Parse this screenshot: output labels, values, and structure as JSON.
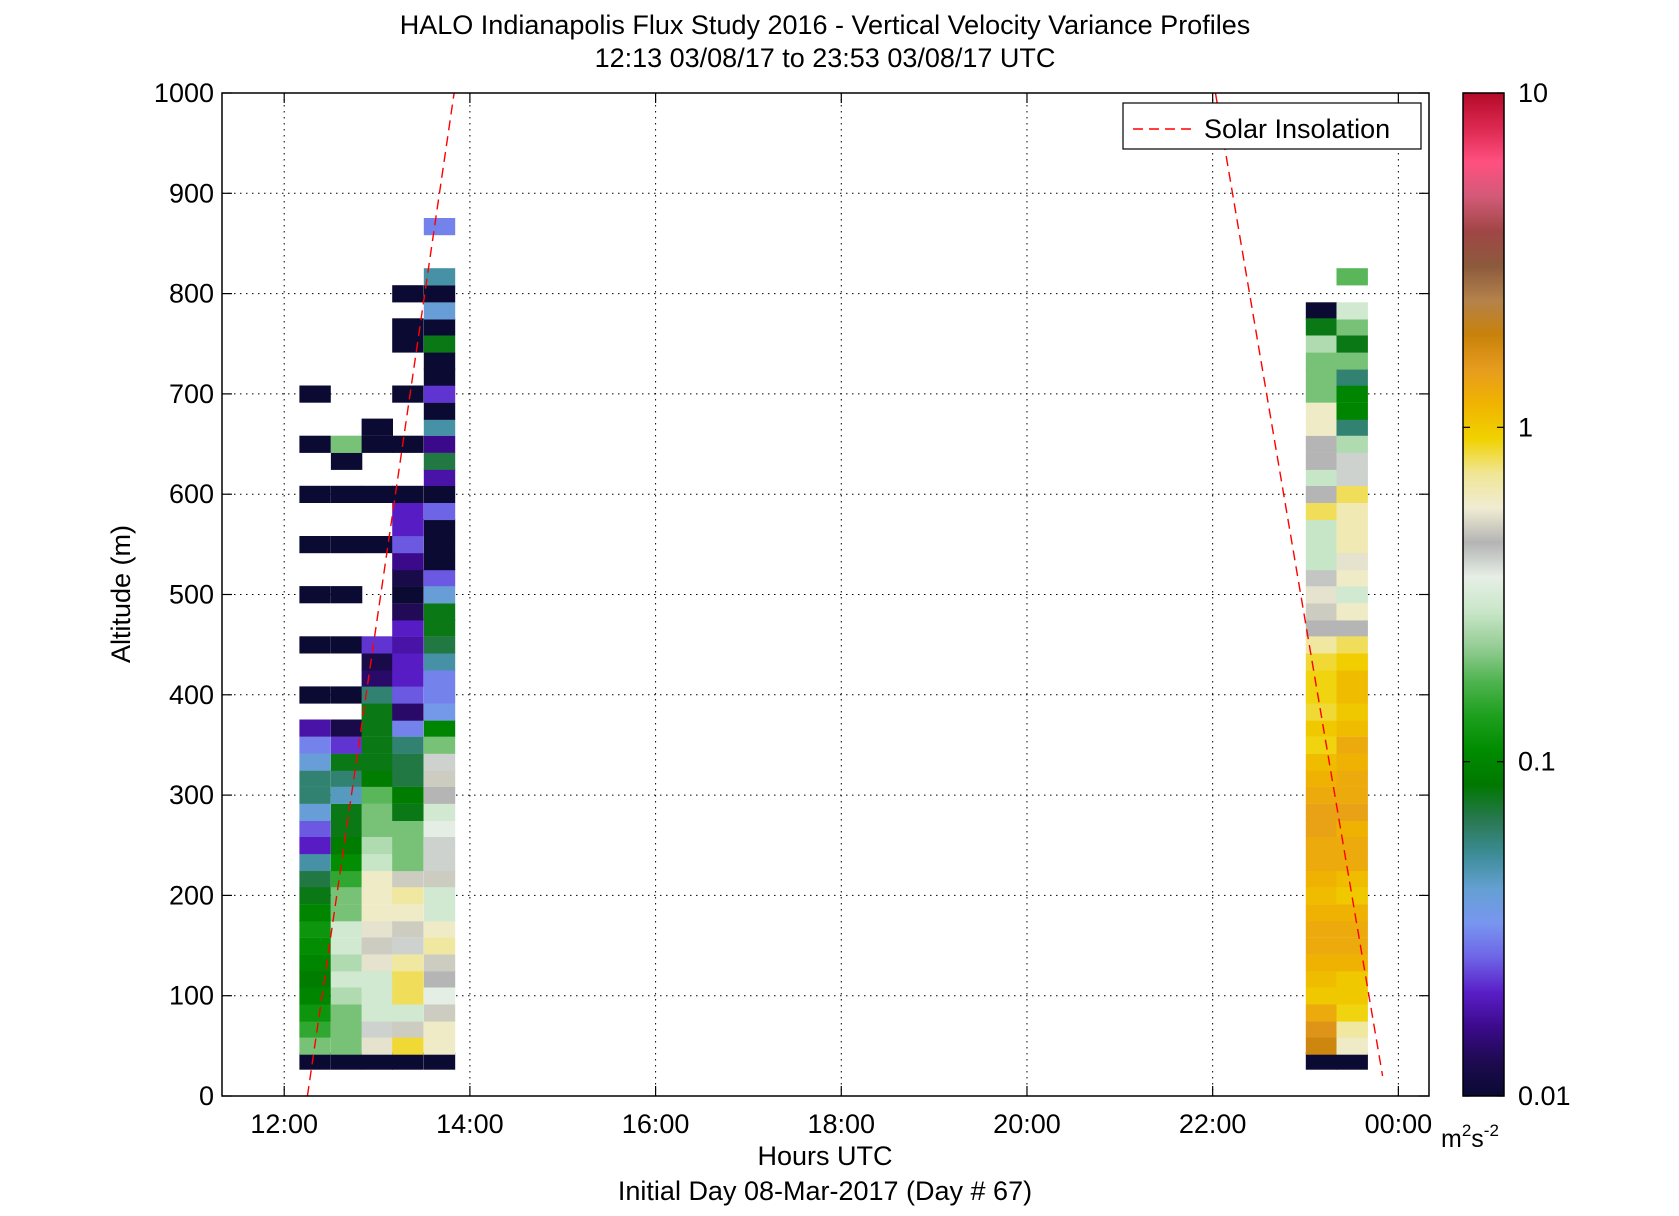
{
  "chart_data": {
    "type": "heatmap",
    "title": "HALO Indianapolis Flux Study 2016 - Vertical Velocity Variance Profiles",
    "subtitle": "12:13 03/08/17 to 23:53 03/08/17  UTC",
    "xlabel": "Hours UTC",
    "xlabel2": "Initial Day 08-Mar-2017 (Day # 67)",
    "ylabel": "Altitude (m)",
    "xlim": [
      11.33,
      24.33
    ],
    "ylim": [
      0,
      1000
    ],
    "x_ticks": [
      12,
      14,
      16,
      18,
      20,
      22,
      24
    ],
    "x_tick_labels": [
      "12:00",
      "14:00",
      "16:00",
      "18:00",
      "20:00",
      "22:00",
      "00:00"
    ],
    "y_ticks": [
      0,
      100,
      200,
      300,
      400,
      500,
      600,
      700,
      800,
      900,
      1000
    ],
    "y_tick_labels": [
      "0",
      "100",
      "200",
      "300",
      "400",
      "500",
      "600",
      "700",
      "800",
      "900",
      "1000"
    ],
    "grid": true,
    "legend_position": "top-right",
    "legend": [
      {
        "label": "Solar Insolation",
        "color": "#ff0000",
        "style": "dashed"
      }
    ],
    "colorbar": {
      "scale": "log",
      "range": [
        0.01,
        10
      ],
      "ticks": [
        0.01,
        0.1,
        1,
        10
      ],
      "tick_labels": [
        "0.01",
        "0.1",
        "1",
        "10"
      ],
      "unit_base": "m",
      "unit_exp1": "2",
      "unit_mid": "s",
      "unit_exp2": "-2",
      "colors": [
        "#0a0a32",
        "#1e0a50",
        "#3c0a8c",
        "#5a1ec8",
        "#6e64e6",
        "#7896f0",
        "#64a0d2",
        "#3c8c96",
        "#287850",
        "#007800",
        "#008c00",
        "#1ea01e",
        "#50b450",
        "#96cd96",
        "#c8e6c8",
        "#e6efe6",
        "#b4b4b4",
        "#f0ecd2",
        "#f0e696",
        "#f0d200",
        "#f0b400",
        "#e69c1e",
        "#c8820a",
        "#b4824b",
        "#8c5a3c",
        "#a04646",
        "#d25a78",
        "#ff5080",
        "#dc2850",
        "#b40a28"
      ]
    },
    "series": [
      {
        "name": "Solar Insolation",
        "segments": [
          [
            [
              12.25,
              0
            ],
            [
              13.83,
              1000
            ]
          ],
          [
            [
              22.03,
              1000
            ],
            [
              23.83,
              20
            ]
          ]
        ]
      }
    ],
    "profiles": [
      {
        "time": 12.33,
        "cells": [
          [
            35,
            0.01
          ],
          [
            50,
            0.2
          ],
          [
            67,
            0.15
          ],
          [
            83,
            0.12
          ],
          [
            100,
            0.1
          ],
          [
            117,
            0.09
          ],
          [
            133,
            0.1
          ],
          [
            150,
            0.11
          ],
          [
            167,
            0.12
          ],
          [
            183,
            0.1
          ],
          [
            200,
            0.08
          ],
          [
            217,
            0.07
          ],
          [
            233,
            0.05
          ],
          [
            250,
            0.02
          ],
          [
            267,
            0.025
          ],
          [
            283,
            0.04
          ],
          [
            300,
            0.06
          ],
          [
            317,
            0.06
          ],
          [
            333,
            0.04
          ],
          [
            350,
            0.03
          ],
          [
            367,
            0.018
          ],
          [
            400,
            0.01
          ],
          [
            450,
            0.01
          ],
          [
            500,
            0.01
          ],
          [
            550,
            0.01
          ],
          [
            600,
            0.01
          ],
          [
            650,
            0.01
          ],
          [
            700,
            0.01
          ]
        ]
      },
      {
        "time": 12.67,
        "cells": [
          [
            35,
            0.01
          ],
          [
            50,
            0.2
          ],
          [
            67,
            0.2
          ],
          [
            83,
            0.2
          ],
          [
            100,
            0.25
          ],
          [
            117,
            0.3
          ],
          [
            133,
            0.25
          ],
          [
            150,
            0.3
          ],
          [
            167,
            0.3
          ],
          [
            183,
            0.2
          ],
          [
            200,
            0.2
          ],
          [
            217,
            0.15
          ],
          [
            233,
            0.11
          ],
          [
            250,
            0.09
          ],
          [
            267,
            0.08
          ],
          [
            283,
            0.08
          ],
          [
            300,
            0.045
          ],
          [
            317,
            0.06
          ],
          [
            333,
            0.08
          ],
          [
            350,
            0.022
          ],
          [
            367,
            0.012
          ],
          [
            400,
            0.01
          ],
          [
            450,
            0.01
          ],
          [
            500,
            0.01
          ],
          [
            550,
            0.01
          ],
          [
            600,
            0.01
          ],
          [
            633,
            0.01
          ],
          [
            650,
            0.2
          ]
        ]
      },
      {
        "time": 13.0,
        "cells": [
          [
            35,
            0.01
          ],
          [
            50,
            0.55
          ],
          [
            67,
            0.4
          ],
          [
            83,
            0.3
          ],
          [
            100,
            0.3
          ],
          [
            117,
            0.3
          ],
          [
            133,
            0.55
          ],
          [
            150,
            0.5
          ],
          [
            167,
            0.55
          ],
          [
            183,
            0.6
          ],
          [
            200,
            0.6
          ],
          [
            217,
            0.6
          ],
          [
            233,
            0.28
          ],
          [
            250,
            0.25
          ],
          [
            267,
            0.2
          ],
          [
            283,
            0.2
          ],
          [
            300,
            0.18
          ],
          [
            317,
            0.09
          ],
          [
            333,
            0.08
          ],
          [
            350,
            0.08
          ],
          [
            367,
            0.08
          ],
          [
            383,
            0.08
          ],
          [
            400,
            0.06
          ],
          [
            417,
            0.014
          ],
          [
            433,
            0.012
          ],
          [
            450,
            0.022
          ],
          [
            550,
            0.01
          ],
          [
            600,
            0.01
          ],
          [
            650,
            0.01
          ],
          [
            667,
            0.01
          ]
        ]
      },
      {
        "time": 13.33,
        "cells": [
          [
            35,
            0.01
          ],
          [
            50,
            0.85
          ],
          [
            67,
            0.5
          ],
          [
            83,
            0.3
          ],
          [
            100,
            0.8
          ],
          [
            117,
            0.8
          ],
          [
            133,
            0.7
          ],
          [
            150,
            0.4
          ],
          [
            167,
            0.5
          ],
          [
            183,
            0.6
          ],
          [
            200,
            0.7
          ],
          [
            217,
            0.5
          ],
          [
            233,
            0.2
          ],
          [
            250,
            0.2
          ],
          [
            267,
            0.2
          ],
          [
            283,
            0.08
          ],
          [
            300,
            0.09
          ],
          [
            317,
            0.07
          ],
          [
            333,
            0.07
          ],
          [
            350,
            0.06
          ],
          [
            367,
            0.03
          ],
          [
            383,
            0.014
          ],
          [
            400,
            0.025
          ],
          [
            417,
            0.02
          ],
          [
            433,
            0.02
          ],
          [
            450,
            0.018
          ],
          [
            467,
            0.02
          ],
          [
            483,
            0.013
          ],
          [
            500,
            0.01
          ],
          [
            517,
            0.012
          ],
          [
            533,
            0.016
          ],
          [
            550,
            0.025
          ],
          [
            567,
            0.02
          ],
          [
            583,
            0.02
          ],
          [
            600,
            0.01
          ],
          [
            650,
            0.01
          ],
          [
            700,
            0.01
          ],
          [
            750,
            0.01
          ],
          [
            767,
            0.01
          ],
          [
            800,
            0.01
          ]
        ]
      },
      {
        "time": 13.67,
        "cells": [
          [
            35,
            0.01
          ],
          [
            50,
            0.6
          ],
          [
            67,
            0.6
          ],
          [
            83,
            0.5
          ],
          [
            100,
            0.35
          ],
          [
            117,
            0.45
          ],
          [
            133,
            0.5
          ],
          [
            150,
            0.7
          ],
          [
            167,
            0.6
          ],
          [
            183,
            0.3
          ],
          [
            200,
            0.3
          ],
          [
            217,
            0.5
          ],
          [
            233,
            0.4
          ],
          [
            250,
            0.4
          ],
          [
            267,
            0.35
          ],
          [
            283,
            0.3
          ],
          [
            300,
            0.45
          ],
          [
            317,
            0.5
          ],
          [
            333,
            0.4
          ],
          [
            350,
            0.2
          ],
          [
            367,
            0.1
          ],
          [
            383,
            0.035
          ],
          [
            400,
            0.03
          ],
          [
            417,
            0.03
          ],
          [
            433,
            0.05
          ],
          [
            450,
            0.07
          ],
          [
            467,
            0.08
          ],
          [
            483,
            0.08
          ],
          [
            500,
            0.04
          ],
          [
            517,
            0.025
          ],
          [
            533,
            0.01
          ],
          [
            550,
            0.01
          ],
          [
            567,
            0.01
          ],
          [
            583,
            0.026
          ],
          [
            600,
            0.01
          ],
          [
            617,
            0.018
          ],
          [
            633,
            0.07
          ],
          [
            650,
            0.016
          ],
          [
            667,
            0.05
          ],
          [
            683,
            0.01
          ],
          [
            700,
            0.022
          ],
          [
            717,
            0.01
          ],
          [
            733,
            0.01
          ],
          [
            750,
            0.08
          ],
          [
            767,
            0.01
          ],
          [
            783,
            0.04
          ],
          [
            800,
            0.01
          ],
          [
            817,
            0.05
          ],
          [
            867,
            0.03
          ]
        ]
      },
      {
        "time": 23.17,
        "cells": [
          [
            35,
            0.01
          ],
          [
            50,
            1.8
          ],
          [
            67,
            1.6
          ],
          [
            83,
            1.3
          ],
          [
            100,
            1.0
          ],
          [
            117,
            1.1
          ],
          [
            133,
            1.2
          ],
          [
            150,
            1.3
          ],
          [
            167,
            1.3
          ],
          [
            183,
            1.2
          ],
          [
            200,
            1.1
          ],
          [
            217,
            1.2
          ],
          [
            233,
            1.3
          ],
          [
            250,
            1.3
          ],
          [
            267,
            1.4
          ],
          [
            283,
            1.4
          ],
          [
            300,
            1.3
          ],
          [
            317,
            1.2
          ],
          [
            333,
            1.1
          ],
          [
            350,
            0.9
          ],
          [
            367,
            1.0
          ],
          [
            383,
            0.85
          ],
          [
            400,
            0.9
          ],
          [
            417,
            0.9
          ],
          [
            433,
            0.85
          ],
          [
            450,
            0.7
          ],
          [
            467,
            0.45
          ],
          [
            483,
            0.5
          ],
          [
            500,
            0.55
          ],
          [
            517,
            0.42
          ],
          [
            533,
            0.28
          ],
          [
            550,
            0.28
          ],
          [
            567,
            0.28
          ],
          [
            583,
            0.8
          ],
          [
            600,
            0.45
          ],
          [
            617,
            0.28
          ],
          [
            633,
            0.45
          ],
          [
            650,
            0.45
          ],
          [
            667,
            0.6
          ],
          [
            683,
            0.6
          ],
          [
            700,
            0.2
          ],
          [
            717,
            0.2
          ],
          [
            733,
            0.2
          ],
          [
            750,
            0.25
          ],
          [
            783,
            0.01
          ],
          [
            767,
            0.08
          ]
        ]
      },
      {
        "time": 23.5,
        "cells": [
          [
            35,
            0.01
          ],
          [
            50,
            0.6
          ],
          [
            67,
            0.7
          ],
          [
            83,
            0.9
          ],
          [
            100,
            1.0
          ],
          [
            117,
            1.0
          ],
          [
            133,
            1.2
          ],
          [
            150,
            1.3
          ],
          [
            167,
            1.3
          ],
          [
            183,
            1.2
          ],
          [
            200,
            1.0
          ],
          [
            217,
            1.1
          ],
          [
            233,
            1.3
          ],
          [
            250,
            1.3
          ],
          [
            267,
            1.2
          ],
          [
            283,
            1.4
          ],
          [
            300,
            1.3
          ],
          [
            317,
            1.3
          ],
          [
            333,
            1.2
          ],
          [
            350,
            1.3
          ],
          [
            367,
            1.1
          ],
          [
            383,
            1.0
          ],
          [
            400,
            1.1
          ],
          [
            417,
            1.1
          ],
          [
            433,
            0.95
          ],
          [
            450,
            0.8
          ],
          [
            467,
            0.45
          ],
          [
            483,
            0.6
          ],
          [
            500,
            0.3
          ],
          [
            517,
            0.6
          ],
          [
            533,
            0.55
          ],
          [
            550,
            0.65
          ],
          [
            567,
            0.65
          ],
          [
            583,
            0.65
          ],
          [
            600,
            0.8
          ],
          [
            617,
            0.4
          ],
          [
            633,
            0.4
          ],
          [
            650,
            0.25
          ],
          [
            667,
            0.06
          ],
          [
            683,
            0.1
          ],
          [
            700,
            0.1
          ],
          [
            717,
            0.06
          ],
          [
            733,
            0.2
          ],
          [
            750,
            0.08
          ],
          [
            767,
            0.2
          ],
          [
            783,
            0.3
          ],
          [
            817,
            0.18
          ]
        ]
      }
    ]
  }
}
